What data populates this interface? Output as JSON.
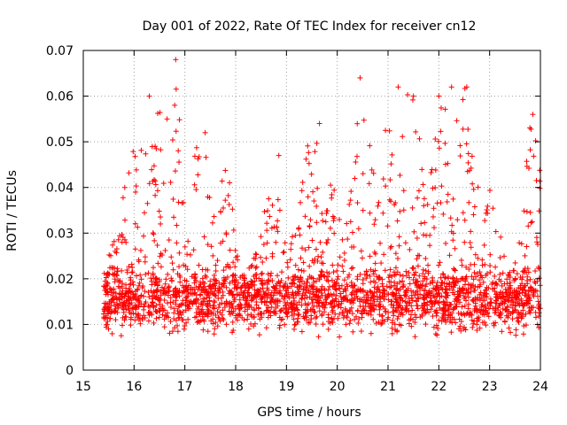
{
  "chart_data": {
    "type": "scatter",
    "title": "Day 001 of 2022, Rate Of TEC Index for receiver cn12",
    "xlabel": "GPS time / hours",
    "ylabel": "ROTI / TECUs",
    "xlim": [
      15,
      24
    ],
    "ylim": [
      0,
      0.07
    ],
    "grid": true,
    "marker": "+",
    "color": "#ff0000",
    "x_ticks": [
      "15",
      "16",
      "17",
      "18",
      "19",
      "20",
      "21",
      "22",
      "23",
      "24"
    ],
    "y_ticks": [
      "0",
      "0.01",
      "0.02",
      "0.03",
      "0.04",
      "0.05",
      "0.06",
      "0.07"
    ],
    "series": [
      {
        "name": "ROTI",
        "x_start": 15.4,
        "x_end": 24.0,
        "typical_range": [
          0.006,
          0.022
        ],
        "notable_points": [
          {
            "x": 16.3,
            "y": 0.06
          },
          {
            "x": 16.82,
            "y": 0.068
          },
          {
            "x": 16.8,
            "y": 0.058
          },
          {
            "x": 16.65,
            "y": 0.055
          },
          {
            "x": 17.4,
            "y": 0.052
          },
          {
            "x": 20.45,
            "y": 0.064
          },
          {
            "x": 21.2,
            "y": 0.062
          },
          {
            "x": 21.5,
            "y": 0.06
          },
          {
            "x": 22.0,
            "y": 0.06
          },
          {
            "x": 22.25,
            "y": 0.062
          },
          {
            "x": 22.55,
            "y": 0.062
          },
          {
            "x": 23.85,
            "y": 0.056
          },
          {
            "x": 19.65,
            "y": 0.054
          },
          {
            "x": 18.85,
            "y": 0.047
          }
        ]
      }
    ]
  }
}
